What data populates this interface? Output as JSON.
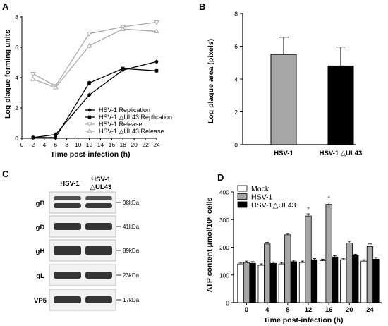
{
  "panels": {
    "A": "A",
    "B": "B",
    "C": "C",
    "D": "D"
  },
  "colors": {
    "gray_bar": "#a6a6a6",
    "black": "#000000",
    "light_line": "#a9a9a9",
    "white_bar": "#ffffff"
  },
  "chart_data": [
    {
      "panel": "A",
      "type": "line",
      "xlabel": "Time post-infection (h)",
      "ylabel": "Log plaque forming units",
      "xlim": [
        0,
        24
      ],
      "ylim": [
        0,
        8
      ],
      "xticks": [
        0,
        2,
        4,
        6,
        8,
        10,
        12,
        14,
        16,
        18,
        20,
        22,
        24
      ],
      "yticks": [
        0,
        2,
        4,
        6,
        8
      ],
      "grid": false,
      "legend_position": "bottom-right",
      "series": [
        {
          "name": "HSV-1 Replication",
          "color": "#000000",
          "marker": "circle",
          "x": [
            2,
            6,
            12,
            18,
            24
          ],
          "y": [
            0.05,
            0.25,
            2.85,
            4.5,
            5.05
          ]
        },
        {
          "name": "HSV-1 △UL43 Replication",
          "color": "#000000",
          "marker": "square",
          "x": [
            2,
            6,
            12,
            18,
            24
          ],
          "y": [
            0.05,
            0.05,
            3.65,
            4.6,
            4.45
          ]
        },
        {
          "name": "HSV-1 Release",
          "color": "#a9a9a9",
          "marker": "triangle-down",
          "x": [
            2,
            6,
            12,
            18,
            24
          ],
          "y": [
            4.25,
            3.45,
            6.9,
            7.35,
            7.65
          ]
        },
        {
          "name": "HSV-1 △UL43 Release",
          "color": "#a9a9a9",
          "marker": "triangle-up",
          "x": [
            2,
            6,
            12,
            18,
            24
          ],
          "y": [
            3.9,
            3.35,
            6.1,
            7.2,
            7.05
          ]
        }
      ]
    },
    {
      "panel": "B",
      "type": "bar",
      "xlabel": "",
      "ylabel": "Log plaque area (pixels)",
      "ylim": [
        0,
        8
      ],
      "yticks": [
        0,
        2,
        4,
        6,
        8
      ],
      "categories": [
        "HSV-1",
        "HSV-1 △UL43"
      ],
      "values": [
        5.5,
        4.8
      ],
      "errors": [
        1.05,
        1.15
      ],
      "colors": [
        "#a6a6a6",
        "#000000"
      ]
    },
    {
      "panel": "D",
      "type": "bar",
      "xlabel": "Time post-infection (h)",
      "ylabel": "ATP content μmol/10⁶ cells",
      "ylim": [
        0,
        400
      ],
      "yticks": [
        0,
        100,
        200,
        300,
        400
      ],
      "categories": [
        "0",
        "4",
        "8",
        "12",
        "16",
        "20",
        "24"
      ],
      "legend_position": "top-left",
      "series": [
        {
          "name": "Mock",
          "color": "#ffffff",
          "values": [
            140,
            135,
            140,
            145,
            152,
            155,
            150
          ],
          "errors": [
            5,
            5,
            5,
            5,
            5,
            5,
            5
          ]
        },
        {
          "name": "HSV-1",
          "color": "#a6a6a6",
          "values": [
            145,
            212,
            245,
            313,
            355,
            215,
            203
          ],
          "errors": [
            5,
            6,
            5,
            8,
            6,
            7,
            9
          ]
        },
        {
          "name": "HSV-1△UL43",
          "color": "#000000",
          "values": [
            142,
            142,
            148,
            155,
            165,
            170,
            157
          ],
          "errors": [
            6,
            5,
            5,
            4,
            5,
            5,
            6
          ]
        }
      ],
      "annotations": [
        {
          "category": "12",
          "text": "*"
        },
        {
          "category": "16",
          "text": "*"
        }
      ]
    }
  ],
  "western_blot": {
    "panel": "C",
    "lanes": [
      "HSV-1",
      "HSV-1\n△UL43"
    ],
    "rows": [
      {
        "label": "gB",
        "marker": "98kDa"
      },
      {
        "label": "gD",
        "marker": "41kDa"
      },
      {
        "label": "gH",
        "marker": "89kDa"
      },
      {
        "label": "gL",
        "marker": "23kDa"
      },
      {
        "label": "VP5",
        "marker": "17kDa"
      }
    ]
  }
}
